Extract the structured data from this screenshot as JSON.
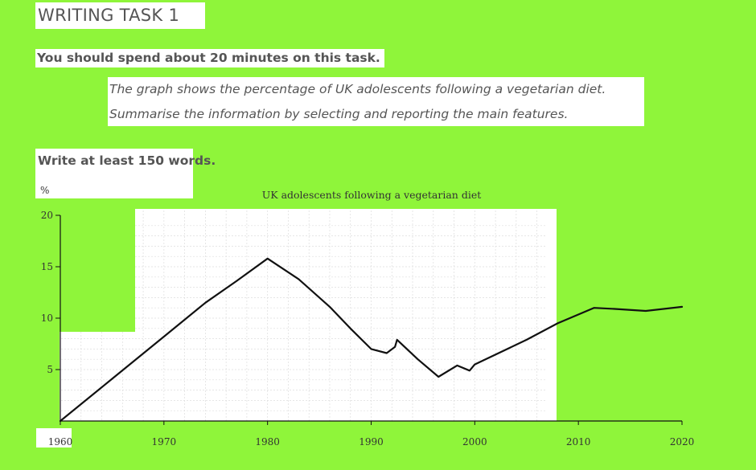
{
  "header": {
    "heading": "WRITING TASK 1",
    "time_note": "You should spend about 20 minutes on this task.",
    "instruction_line1": "The graph shows the percentage of UK adolescents following a vegetarian diet.",
    "instruction_line2": "Summarise the information by selecting and reporting the main features.",
    "word_note": "Write at least 150 words."
  },
  "colors": {
    "background": "#8ff53a",
    "panel": "#ffffff",
    "line": "#111111"
  },
  "chart_data": {
    "type": "line",
    "title": "UK adolescents following a vegetarian diet",
    "ylabel": "%",
    "xlabel": "",
    "xlim": [
      1960,
      2020
    ],
    "ylim": [
      0,
      20
    ],
    "x_ticks": [
      1960,
      1970,
      1980,
      1990,
      2000,
      2010,
      2020
    ],
    "y_ticks": [
      5,
      10,
      15,
      20
    ],
    "grid": true,
    "legend": "none",
    "series": [
      {
        "x": [
          1960,
          1965,
          1970,
          1974,
          1977,
          1980,
          1983,
          1986,
          1988,
          1990,
          1991.5,
          1992.3,
          1992.5,
          1994.5,
          1996.5,
          1998.3,
          1999.5,
          2000,
          2005,
          2008,
          2011.5,
          2013.5,
          2016.5,
          2020
        ],
        "y": [
          0,
          4.1,
          8.2,
          11.5,
          13.6,
          15.8,
          13.8,
          11.1,
          9.0,
          7.0,
          6.6,
          7.2,
          7.9,
          6.0,
          4.3,
          5.4,
          4.9,
          5.5,
          7.9,
          9.5,
          11.0,
          10.9,
          10.7,
          11.1
        ]
      }
    ]
  }
}
